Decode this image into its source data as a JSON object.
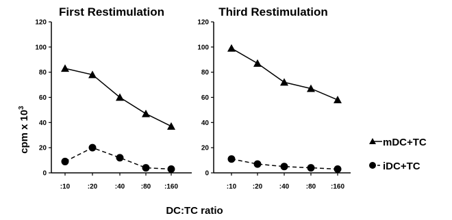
{
  "chart_data": [
    {
      "type": "line",
      "title": "First Restimulation",
      "categories": [
        ":10",
        ":20",
        ":40",
        ":80",
        ":160"
      ],
      "ylim": [
        0,
        120
      ],
      "yticks": [
        0,
        20,
        40,
        60,
        80,
        100,
        120
      ],
      "grid": false,
      "series": [
        {
          "name": "mDC+TC",
          "values": [
            83,
            78,
            60,
            47,
            37
          ]
        },
        {
          "name": "iDC+TC",
          "values": [
            9,
            20,
            12,
            4,
            3
          ]
        }
      ]
    },
    {
      "type": "line",
      "title": "Third Restimulation",
      "categories": [
        ":10",
        ":20",
        ":40",
        ":80",
        ":160"
      ],
      "ylim": [
        0,
        120
      ],
      "yticks": [
        0,
        20,
        40,
        60,
        80,
        100,
        120
      ],
      "grid": false,
      "series": [
        {
          "name": "mDC+TC",
          "values": [
            99,
            87,
            72,
            67,
            58
          ]
        },
        {
          "name": "iDC+TC",
          "values": [
            11,
            7,
            5,
            4,
            3
          ]
        }
      ]
    }
  ],
  "ylabel": "cpm x 10",
  "ylabel_superscript": "3",
  "xlabel": "DC:TC ratio",
  "legend": {
    "placement": "right",
    "items": [
      {
        "label": "mDC+TC",
        "marker": "triangle",
        "line": "solid"
      },
      {
        "label": "iDC+TC",
        "marker": "circle",
        "line": "dashed"
      }
    ]
  }
}
